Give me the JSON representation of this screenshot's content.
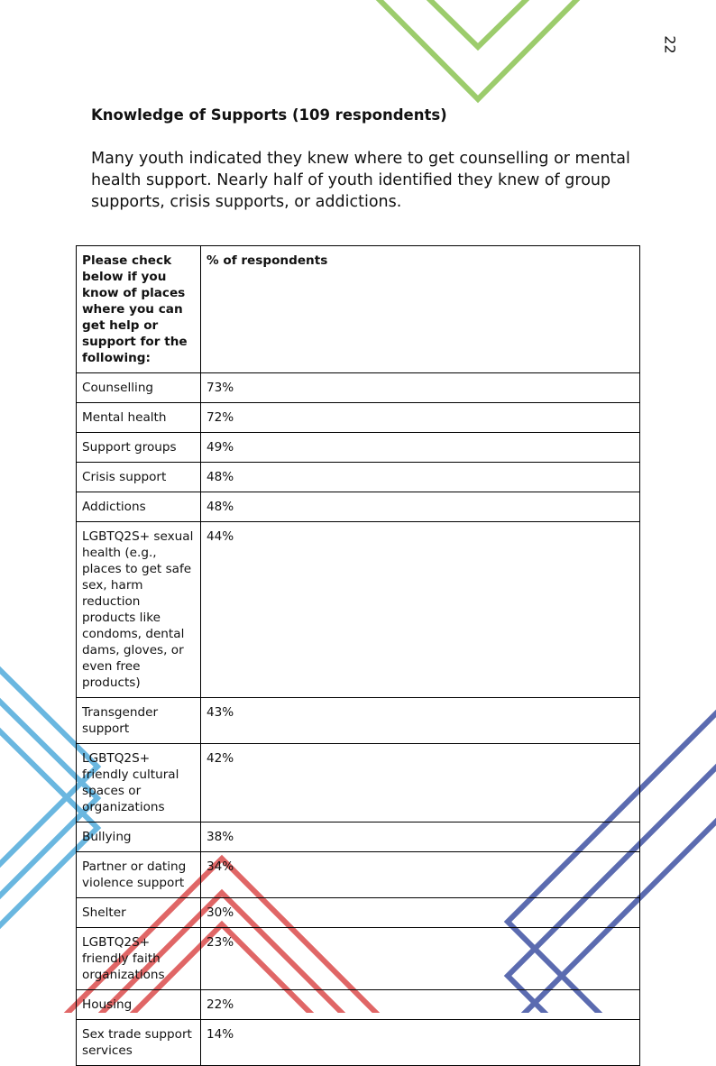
{
  "page_number": "22",
  "heading": "Knowledge of Supports (109 respondents)",
  "paragraph": "Many youth indicated they knew where to get counselling or mental health support.  Nearly half of youth identified they knew of group supports, crisis supports, or addictions.",
  "table": {
    "header": [
      "Please check below if you know of places where you can get help or support for the following:",
      "% of respondents"
    ],
    "rows": [
      [
        "Counselling",
        "73%"
      ],
      [
        "Mental health",
        "72%"
      ],
      [
        "Support groups",
        "49%"
      ],
      [
        "Crisis support",
        "48%"
      ],
      [
        "Addictions",
        "48%"
      ],
      [
        "LGBTQ2S+ sexual health (e.g., places to get safe sex, harm reduction products like condoms, dental dams, gloves,  or even free products)",
        "44%"
      ],
      [
        "Transgender support",
        "43%"
      ],
      [
        "LGBTQ2S+ friendly cultural spaces or organizations",
        "42%"
      ],
      [
        "Bullying",
        "38%"
      ],
      [
        "Partner or dating violence support",
        "34%"
      ],
      [
        "Shelter",
        "30%"
      ],
      [
        "LGBTQ2S+ friendly faith organizations",
        "23%"
      ],
      [
        "Housing",
        "22%"
      ],
      [
        "Sex trade support services",
        "14%"
      ]
    ]
  }
}
